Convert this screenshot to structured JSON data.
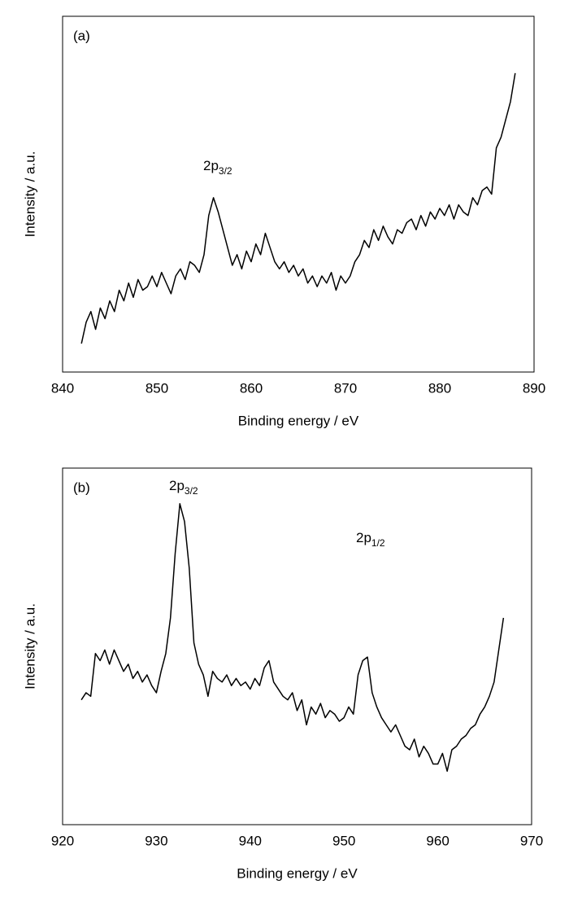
{
  "chart_data": [
    {
      "type": "line",
      "panel_label": "(a)",
      "xlabel": "Binding energy / eV",
      "ylabel": "Intensity / a.u.",
      "color": "#000000",
      "xlim": [
        840,
        890
      ],
      "xticks": [
        840,
        850,
        860,
        870,
        880,
        890
      ],
      "ylim": [
        0,
        100
      ],
      "annotations": [
        {
          "text": "2p",
          "subscript": "3/2"
        }
      ],
      "x": [
        842,
        842.5,
        843,
        843.5,
        844,
        844.5,
        845,
        845.5,
        846,
        846.5,
        847,
        847.5,
        848,
        848.5,
        849,
        849.5,
        850,
        850.5,
        851,
        851.5,
        852,
        852.5,
        853,
        853.5,
        854,
        854.5,
        855,
        855.5,
        856,
        856.5,
        857,
        857.5,
        858,
        858.5,
        859,
        859.5,
        860,
        860.5,
        861,
        861.5,
        862,
        862.5,
        863,
        863.5,
        864,
        864.5,
        865,
        865.5,
        866,
        866.5,
        867,
        867.5,
        868,
        868.5,
        869,
        869.5,
        870,
        870.5,
        871,
        871.5,
        872,
        872.5,
        873,
        873.5,
        874,
        874.5,
        875,
        875.5,
        876,
        876.5,
        877,
        877.5,
        878,
        878.5,
        879,
        879.5,
        880,
        880.5,
        881,
        881.5,
        882,
        882.5,
        883,
        883.5,
        884,
        884.5,
        885,
        885.5,
        886,
        886.5,
        887,
        887.5,
        888
      ],
      "values": [
        8,
        14,
        17,
        12,
        18,
        15,
        20,
        17,
        23,
        20,
        25,
        21,
        26,
        23,
        24,
        27,
        24,
        28,
        25,
        22,
        27,
        29,
        26,
        31,
        30,
        28,
        33,
        44,
        49,
        45,
        40,
        35,
        30,
        33,
        29,
        34,
        31,
        36,
        33,
        39,
        35,
        31,
        29,
        31,
        28,
        30,
        27,
        29,
        25,
        27,
        24,
        27,
        25,
        28,
        23,
        27,
        25,
        27,
        31,
        33,
        37,
        35,
        40,
        37,
        41,
        38,
        36,
        40,
        39,
        42,
        43,
        40,
        44,
        41,
        45,
        43,
        46,
        44,
        47,
        43,
        47,
        45,
        44,
        49,
        47,
        51,
        52,
        50,
        63,
        66,
        71,
        76,
        84
      ]
    },
    {
      "type": "line",
      "panel_label": "(b)",
      "xlabel": "Binding energy / eV",
      "ylabel": "Intensity / a.u.",
      "color": "#000000",
      "xlim": [
        920,
        970
      ],
      "xticks": [
        920,
        930,
        940,
        950,
        960,
        970
      ],
      "ylim": [
        0,
        100
      ],
      "annotations": [
        {
          "text": "2p",
          "subscript": "3/2"
        },
        {
          "text": "2p",
          "subscript": "1/2"
        }
      ],
      "x": [
        922,
        922.5,
        923,
        923.5,
        924,
        924.5,
        925,
        925.5,
        926,
        926.5,
        927,
        927.5,
        928,
        928.5,
        929,
        929.5,
        930,
        930.5,
        931,
        931.5,
        932,
        932.5,
        933,
        933.5,
        934,
        934.5,
        935,
        935.5,
        936,
        936.5,
        937,
        937.5,
        938,
        938.5,
        939,
        939.5,
        940,
        940.5,
        941,
        941.5,
        942,
        942.5,
        943,
        943.5,
        944,
        944.5,
        945,
        945.5,
        946,
        946.5,
        947,
        947.5,
        948,
        948.5,
        949,
        949.5,
        950,
        950.5,
        951,
        951.5,
        952,
        952.5,
        953,
        953.5,
        954,
        954.5,
        955,
        955.5,
        956,
        956.5,
        957,
        957.5,
        958,
        958.5,
        959,
        959.5,
        960,
        960.5,
        961,
        961.5,
        962,
        962.5,
        963,
        963.5,
        964,
        964.5,
        965,
        965.5,
        966,
        966.5,
        967
      ],
      "values": [
        35,
        37,
        36,
        48,
        46,
        49,
        45,
        49,
        46,
        43,
        45,
        41,
        43,
        40,
        42,
        39,
        37,
        43,
        48,
        58,
        76,
        90,
        85,
        72,
        51,
        45,
        42,
        36,
        43,
        41,
        40,
        42,
        39,
        41,
        39,
        40,
        38,
        41,
        39,
        44,
        46,
        40,
        38,
        36,
        35,
        37,
        32,
        35,
        28,
        33,
        31,
        34,
        30,
        32,
        31,
        29,
        30,
        33,
        31,
        42,
        46,
        47,
        37,
        33,
        30,
        28,
        26,
        28,
        25,
        22,
        21,
        24,
        19,
        22,
        20,
        17,
        17,
        20,
        15,
        21,
        22,
        24,
        25,
        27,
        28,
        31,
        33,
        36,
        40,
        49,
        58
      ]
    }
  ]
}
